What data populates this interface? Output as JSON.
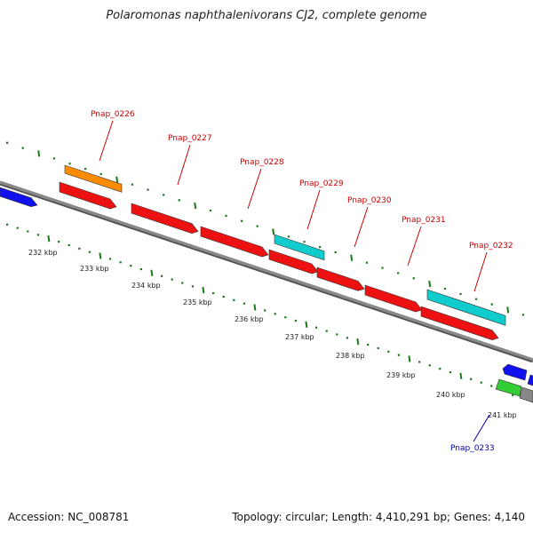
{
  "title": "Polaromonas naphthalenivorans CJ2, complete genome",
  "accession": "Accession: NC_008781",
  "topology": "Topology: circular; Length: 4,410,291 bp; Genes: 4,140",
  "colors": {
    "backbone": "#8a8a8a",
    "tick": "#1a7a1a",
    "label_red": "#cc0000",
    "label_blue": "#0000aa",
    "red": "#ee1111",
    "orange": "#ff8c00",
    "cyan": "#11cccc",
    "blue": "#1111ee",
    "green": "#33cc33",
    "gray": "#888888"
  },
  "scale_labels": [
    "232 kbp",
    "233 kbp",
    "234 kbp",
    "235 kbp",
    "236 kbp",
    "237 kbp",
    "238 kbp",
    "239 kbp",
    "240 kbp",
    "241 kbp"
  ],
  "gene_labels": [
    {
      "text": "Pnap_0226",
      "color": "red"
    },
    {
      "text": "Pnap_0227",
      "color": "red"
    },
    {
      "text": "Pnap_0228",
      "color": "red"
    },
    {
      "text": "Pnap_0229",
      "color": "red"
    },
    {
      "text": "Pnap_0230",
      "color": "red"
    },
    {
      "text": "Pnap_0231",
      "color": "red"
    },
    {
      "text": "Pnap_0232",
      "color": "red"
    },
    {
      "text": "Pnap_0233",
      "color": "blue"
    }
  ]
}
